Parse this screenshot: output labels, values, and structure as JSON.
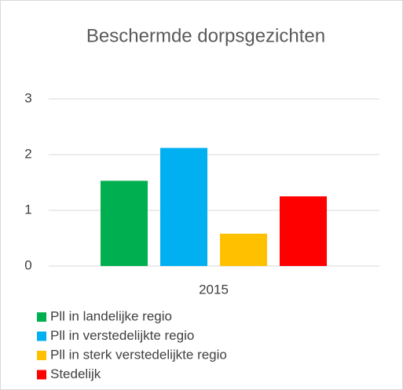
{
  "chart_data": {
    "type": "bar",
    "title": "Beschermde dorpsgezichten",
    "categories": [
      "2015"
    ],
    "series": [
      {
        "name": "Pll in landelijke regio",
        "color": "#00b050",
        "values": [
          1.53
        ]
      },
      {
        "name": "Pll in verstedelijkte regio",
        "color": "#00b0f0",
        "values": [
          2.12
        ]
      },
      {
        "name": "Pll in sterk verstedelijkte regio",
        "color": "#ffc000",
        "values": [
          0.58
        ]
      },
      {
        "name": "Stedelijk",
        "color": "#ff0000",
        "values": [
          1.25
        ]
      }
    ],
    "ylim": [
      0,
      3
    ],
    "yticks": [
      0,
      1,
      2,
      3
    ],
    "grid": true,
    "legend": "bottom"
  }
}
